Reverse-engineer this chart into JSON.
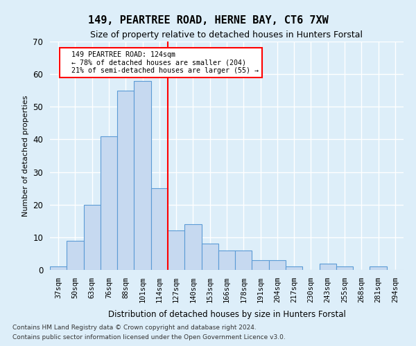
{
  "title": "149, PEARTREE ROAD, HERNE BAY, CT6 7XW",
  "subtitle": "Size of property relative to detached houses in Hunters Forstal",
  "xlabel": "Distribution of detached houses by size in Hunters Forstal",
  "ylabel": "Number of detached properties",
  "bin_labels": [
    "37sqm",
    "50sqm",
    "63sqm",
    "76sqm",
    "88sqm",
    "101sqm",
    "114sqm",
    "127sqm",
    "140sqm",
    "153sqm",
    "166sqm",
    "178sqm",
    "191sqm",
    "204sqm",
    "217sqm",
    "230sqm",
    "243sqm",
    "255sqm",
    "268sqm",
    "281sqm",
    "294sqm"
  ],
  "bar_values": [
    1,
    9,
    20,
    41,
    55,
    58,
    25,
    12,
    14,
    8,
    6,
    6,
    3,
    3,
    1,
    0,
    2,
    1,
    0,
    1,
    0
  ],
  "bar_color": "#c6d9f0",
  "bar_edgecolor": "#5b9bd5",
  "vline_x": 6.5,
  "vline_color": "red",
  "annotation_text": "  149 PEARTREE ROAD: 124sqm\n  ← 78% of detached houses are smaller (204)\n  21% of semi-detached houses are larger (55) →",
  "annotation_box_edgecolor": "red",
  "annotation_box_facecolor": "white",
  "ylim": [
    0,
    70
  ],
  "yticks": [
    0,
    10,
    20,
    30,
    40,
    50,
    60,
    70
  ],
  "footer1": "Contains HM Land Registry data © Crown copyright and database right 2024.",
  "footer2": "Contains public sector information licensed under the Open Government Licence v3.0.",
  "bg_color": "#ddeef9",
  "plot_bg_color": "#ddeef9",
  "grid_color": "white"
}
